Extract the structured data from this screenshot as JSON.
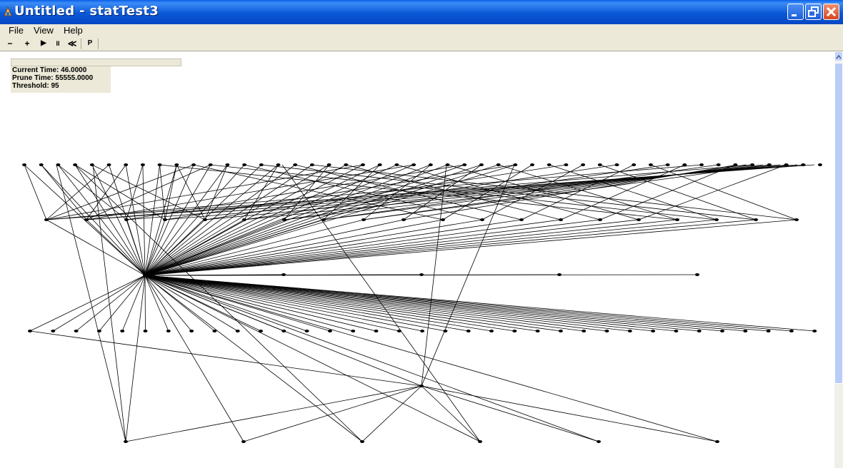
{
  "window": {
    "title": "Untitled - statTest3"
  },
  "menu": [
    "File",
    "View",
    "Help"
  ],
  "toolbar": [
    {
      "icon": "minus-icon",
      "label": "−"
    },
    {
      "icon": "plus-icon",
      "label": "+"
    },
    {
      "icon": "play-icon",
      "label": "▶"
    },
    {
      "icon": "pause-icon",
      "label": "II"
    },
    {
      "icon": "rewind-icon",
      "label": "≪"
    },
    {
      "icon": "p-icon",
      "label": "P"
    }
  ],
  "info": {
    "current_time": "Current Time: 46.0000",
    "prune_time": "Prune Time: 55555.0000",
    "threshold": "Threshold: 95"
  }
}
